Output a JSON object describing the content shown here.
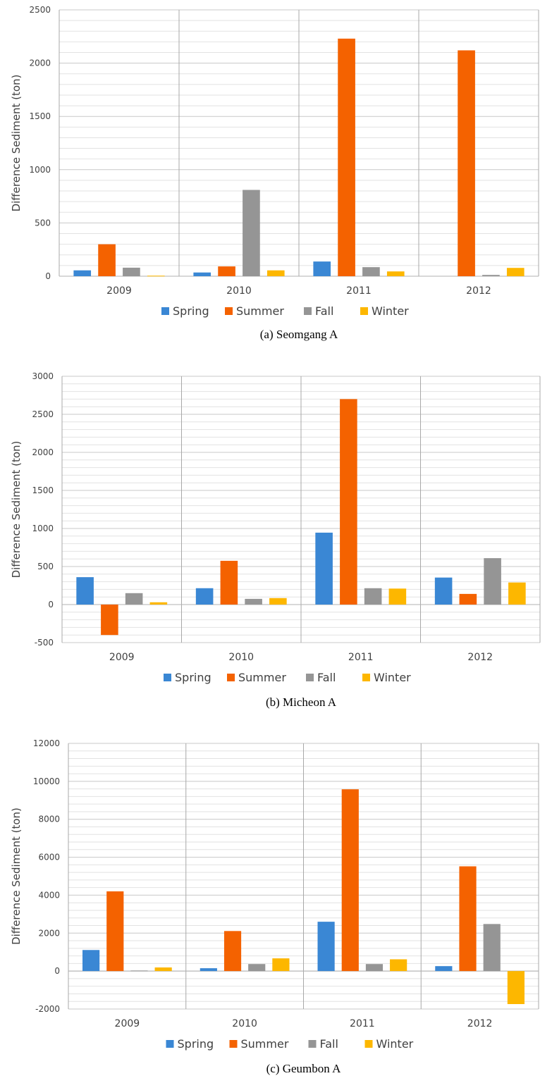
{
  "chart_data": [
    {
      "type": "bar",
      "caption": "(a)  Seomgang  A",
      "ylabel": "Difference Sediment (ton)",
      "categories": [
        "2009",
        "2010",
        "2011",
        "2012"
      ],
      "ylim": [
        0,
        2500
      ],
      "major_step": 500,
      "minor_step": 100,
      "yticks": [
        "0",
        "500",
        "1000",
        "1500",
        "2000",
        "2500"
      ],
      "series": [
        {
          "name": "Spring",
          "color": "#3a87d4",
          "values": [
            55,
            35,
            138,
            0
          ]
        },
        {
          "name": "Summer",
          "color": "#f46200",
          "values": [
            300,
            92,
            2230,
            2120
          ]
        },
        {
          "name": "Fall",
          "color": "#959595",
          "values": [
            80,
            810,
            85,
            12
          ]
        },
        {
          "name": "Winter",
          "color": "#fdb700",
          "values": [
            5,
            55,
            45,
            78
          ]
        }
      ],
      "grid": true,
      "legend": "bottom"
    },
    {
      "type": "bar",
      "caption": "(b)  Micheon  A",
      "ylabel": "Difference Sediment (ton)",
      "categories": [
        "2009",
        "2010",
        "2011",
        "2012"
      ],
      "ylim": [
        -500,
        3000
      ],
      "major_step": 500,
      "minor_step": 100,
      "yticks": [
        "-500",
        "0",
        "500",
        "1000",
        "1500",
        "2000",
        "2500",
        "3000"
      ],
      "series": [
        {
          "name": "Spring",
          "color": "#3a87d4",
          "values": [
            360,
            215,
            945,
            355
          ]
        },
        {
          "name": "Summer",
          "color": "#f46200",
          "values": [
            -400,
            575,
            2700,
            140
          ]
        },
        {
          "name": "Fall",
          "color": "#959595",
          "values": [
            150,
            75,
            215,
            610
          ]
        },
        {
          "name": "Winter",
          "color": "#fdb700",
          "values": [
            30,
            85,
            210,
            290
          ]
        }
      ],
      "grid": true,
      "legend": "bottom"
    },
    {
      "type": "bar",
      "caption": "(c)  Geumbon  A",
      "ylabel": "Difference Sediment (ton)",
      "categories": [
        "2009",
        "2010",
        "2011",
        "2012"
      ],
      "ylim": [
        -2000,
        12000
      ],
      "major_step": 2000,
      "minor_step": 400,
      "yticks": [
        "-2000",
        "0",
        "2000",
        "4000",
        "6000",
        "8000",
        "10000",
        "12000"
      ],
      "series": [
        {
          "name": "Spring",
          "color": "#3a87d4",
          "values": [
            1110,
            150,
            2600,
            260
          ]
        },
        {
          "name": "Summer",
          "color": "#f46200",
          "values": [
            4200,
            2110,
            9580,
            5520
          ]
        },
        {
          "name": "Fall",
          "color": "#959595",
          "values": [
            30,
            370,
            370,
            2480
          ]
        },
        {
          "name": "Winter",
          "color": "#fdb700",
          "values": [
            190,
            670,
            620,
            -1740
          ]
        }
      ],
      "grid": true,
      "legend": "bottom"
    }
  ]
}
